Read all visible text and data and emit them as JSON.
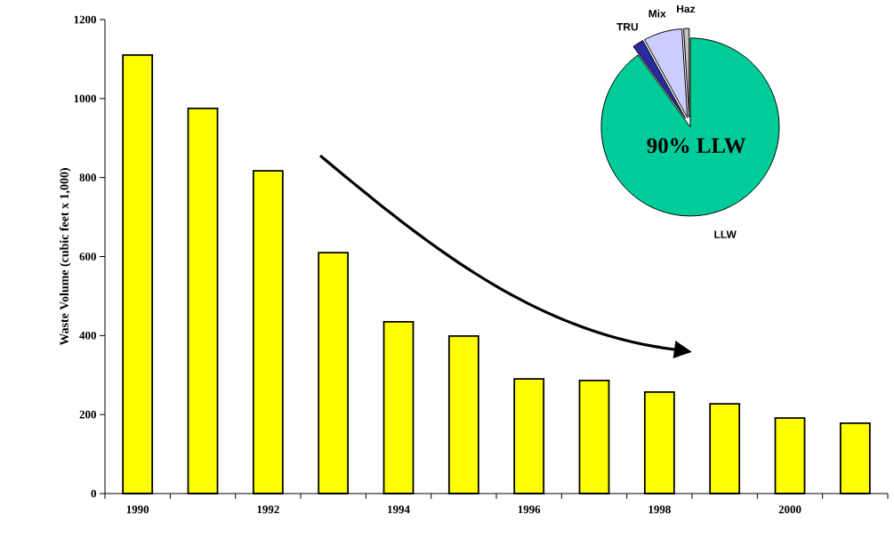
{
  "chart_data": [
    {
      "type": "bar",
      "ylabel": "Waste Volume (cubic feet x 1,000)",
      "categories": [
        "1990",
        null,
        "1992",
        null,
        "1994",
        null,
        "1996",
        null,
        "1998",
        null,
        "2000",
        null
      ],
      "values": [
        1110,
        975,
        817,
        610,
        435,
        399,
        290,
        286,
        257,
        227,
        191,
        178
      ],
      "color": "#ffff00",
      "ylim": [
        0,
        1200
      ],
      "yticks": [
        0,
        200,
        400,
        600,
        800,
        1000,
        1200
      ]
    },
    {
      "type": "pie",
      "categories": [
        "LLW",
        "TRU",
        "Mix",
        "Haz"
      ],
      "values": [
        90,
        2,
        7,
        1
      ],
      "colors": [
        "#00cc99",
        "#2a2aa0",
        "#ccccff",
        "#c0c0c0"
      ],
      "value_labels": [
        "90% LLW",
        null,
        null,
        null
      ]
    }
  ]
}
